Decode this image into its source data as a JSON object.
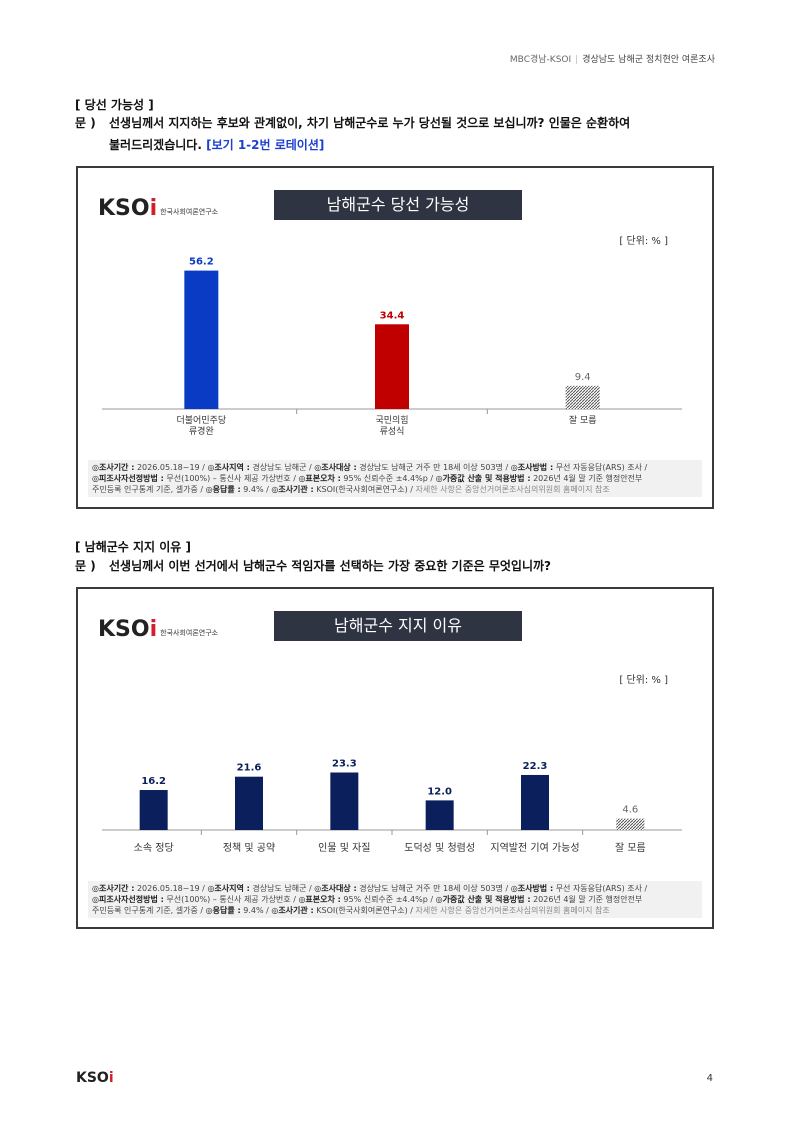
{
  "header": {
    "left": "MBC경남-KSOI",
    "right": "경상남도 남해군 정치현안 여론조사"
  },
  "sections": [
    {
      "title": "[ 당선 가능성 ]",
      "question_mark": "문 )",
      "question_line1": "선생님께서 지지하는 후보와 관계없이, 차기 남해군수로 누가 당선될 것으로 보십니까? 인물은 순환하여",
      "question_line2": "불러드리겠습니다.",
      "rotation_note": "[보기 1-2번 로테이션]"
    },
    {
      "title": "[ 남해군수 지지 이유 ]",
      "question_mark": "문 )",
      "question_line1": "선생님께서 이번 선거에서 남해군수 적임자를 선택하는 가장 중요한 기준은 무엇입니까?"
    }
  ],
  "logo": {
    "word_prefix": "KSO",
    "word_i": "i",
    "sub": "한국사회여론연구소"
  },
  "footnote": {
    "l1_a_label": "◎조사기간 :",
    "l1_a": "2026.05.18~19 /",
    "l1_b_label": "◎조사지역 :",
    "l1_b": "경상남도 남해군 /",
    "l1_c_label": "◎조사대상 :",
    "l1_c": "경상남도 남해군 거주 만 18세 이상 503명 /",
    "l1_d_label": "◎조사방법 :",
    "l1_d": "무선 자동응답(ARS) 조사 /",
    "l2_a_label": "◎피조사자선정방법 :",
    "l2_a": "무선(100%) – 통신사 제공 가상번호 /",
    "l2_b_label": "◎표본오차 :",
    "l2_b": "95% 신뢰수준 ±4.4%p /",
    "l2_c_label": "◎가중값 산출 및 적용방법 :",
    "l2_c": "2026년 4월 말 기준 행정안전부",
    "l3_a": "주민등록 인구통계 기준, 셀가중 /",
    "l3_b_label": "◎응답률 :",
    "l3_b": "9.4% /",
    "l3_c_label": "◎조사기관 :",
    "l3_c": "KSOI(한국사회여론연구소) /",
    "l3_d": "자세한 사항은 중앙선거여론조사심의위원회 홈페이지 참조"
  },
  "chart_data": [
    {
      "type": "bar",
      "title": "남해군수 당선 가능성",
      "unit": "[ 단위: % ]",
      "categories": [
        [
          "더불어민주당",
          "류경완"
        ],
        [
          "국민의힘",
          "류성식"
        ],
        [
          "잘 모름"
        ]
      ],
      "values": [
        56.2,
        34.4,
        9.4
      ],
      "value_labels": [
        "56.2",
        "34.4",
        "9.4"
      ],
      "colors": [
        "#0a3bc4",
        "#c00000",
        "hatch"
      ],
      "ylim": [
        0,
        65
      ]
    },
    {
      "type": "bar",
      "title": "남해군수 지지 이유",
      "unit": "[ 단위: % ]",
      "categories": [
        [
          "소속 정당"
        ],
        [
          "정책 및 공약"
        ],
        [
          "인물 및 자질"
        ],
        [
          "도덕성 및 청렴성"
        ],
        [
          "지역발전 기여 가능성"
        ],
        [
          "잘 모름"
        ]
      ],
      "values": [
        16.2,
        21.6,
        23.3,
        12.0,
        22.3,
        4.6
      ],
      "value_labels": [
        "16.2",
        "21.6",
        "23.3",
        "12.0",
        "22.3",
        "4.6"
      ],
      "colors": [
        "#0b1f5c",
        "#0b1f5c",
        "#0b1f5c",
        "#0b1f5c",
        "#0b1f5c",
        "hatch"
      ],
      "ylim": [
        0,
        30
      ]
    }
  ],
  "footer": {
    "logo_prefix": "KSO",
    "logo_i": "i",
    "page_number": "4"
  }
}
